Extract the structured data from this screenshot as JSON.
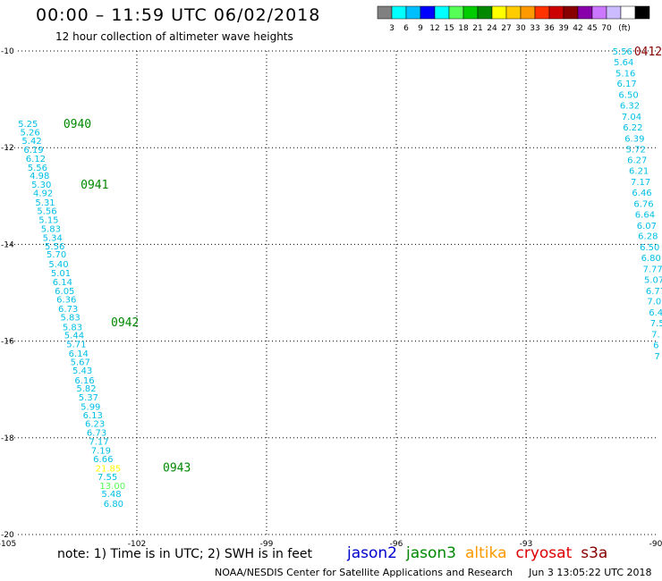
{
  "header": {
    "title": "00:00 – 11:59 UTC 06/02/2018",
    "subtitle": "12 hour collection of altimeter wave heights"
  },
  "colorbar": {
    "colors": [
      "#808080",
      "#00ffff",
      "#00bfff",
      "#0000ff",
      "#00ffff",
      "#55ff55",
      "#00cc00",
      "#008800",
      "#ffff00",
      "#ffcc00",
      "#ff9900",
      "#ff3300",
      "#cc0000",
      "#880000",
      "#8800aa",
      "#cc77ff",
      "#ccbbff",
      "#ffffff",
      "#000000"
    ],
    "labels": [
      "3",
      "6",
      "9",
      "12",
      "15",
      "18",
      "21",
      "24",
      "27",
      "30",
      "33",
      "36",
      "39",
      "42",
      "45",
      "70",
      "(ft)"
    ]
  },
  "note": "note: 1) Time is in UTC; 2) SWH is in feet",
  "legend": [
    {
      "name": "jason2",
      "color": "#0000cc"
    },
    {
      "name": "jason3",
      "color": "#008800"
    },
    {
      "name": "altika",
      "color": "#ff9900"
    },
    {
      "name": "cryosat",
      "color": "#dd0000"
    },
    {
      "name": "s3a",
      "color": "#880000"
    }
  ],
  "footer": {
    "source": "NOAA/NESDIS Center for Satellite Applications and Research",
    "timestamp": "Jun  3 13:05:22 UTC 2018"
  },
  "chart_data": {
    "type": "scatter",
    "xlim": [
      -105,
      -90
    ],
    "ylim": [
      -20,
      -10
    ],
    "xticks": [
      "-105",
      "-102",
      "-99",
      "-96",
      "-93",
      "-90"
    ],
    "yticks": [
      "-10",
      "-12",
      "-14",
      "-16",
      "-18",
      "-20"
    ],
    "grid": true,
    "tracks": [
      {
        "satellite": "jason3",
        "label_color": "#008800",
        "time_labels": [
          {
            "time": "0940",
            "x": -103.7,
            "y": -11.5
          },
          {
            "time": "0941",
            "x": -103.3,
            "y": -12.75
          },
          {
            "time": "0942",
            "x": -102.6,
            "y": -15.6
          },
          {
            "time": "0943",
            "x": -101.4,
            "y": -18.6
          }
        ],
        "points": [
          {
            "x": -104.75,
            "y": -11.5,
            "v": "5.25"
          },
          {
            "x": -104.7,
            "y": -11.67,
            "v": "5.26"
          },
          {
            "x": -104.66,
            "y": -11.85,
            "v": "5.42"
          },
          {
            "x": -104.62,
            "y": -12.03,
            "v": "6.19"
          },
          {
            "x": -104.57,
            "y": -12.22,
            "v": "6.12"
          },
          {
            "x": -104.53,
            "y": -12.4,
            "v": "5.56"
          },
          {
            "x": -104.48,
            "y": -12.57,
            "v": "4.98"
          },
          {
            "x": -104.44,
            "y": -12.75,
            "v": "5.30"
          },
          {
            "x": -104.4,
            "y": -12.93,
            "v": "4.92"
          },
          {
            "x": -104.35,
            "y": -13.12,
            "v": "5.31"
          },
          {
            "x": -104.31,
            "y": -13.3,
            "v": "5.56"
          },
          {
            "x": -104.27,
            "y": -13.48,
            "v": "5.15"
          },
          {
            "x": -104.22,
            "y": -13.67,
            "v": "5.83"
          },
          {
            "x": -104.18,
            "y": -13.85,
            "v": "5.34"
          },
          {
            "x": -104.13,
            "y": -14.03,
            "v": "5.56"
          },
          {
            "x": -104.09,
            "y": -14.2,
            "v": "5.70"
          },
          {
            "x": -104.04,
            "y": -14.4,
            "v": "5.40"
          },
          {
            "x": -103.99,
            "y": -14.58,
            "v": "5.01"
          },
          {
            "x": -103.95,
            "y": -14.77,
            "v": "6.14"
          },
          {
            "x": -103.9,
            "y": -14.95,
            "v": "6.05"
          },
          {
            "x": -103.86,
            "y": -15.13,
            "v": "6.36"
          },
          {
            "x": -103.82,
            "y": -15.32,
            "v": "6.73"
          },
          {
            "x": -103.77,
            "y": -15.5,
            "v": "5.83"
          },
          {
            "x": -103.72,
            "y": -15.7,
            "v": "5.83"
          },
          {
            "x": -103.68,
            "y": -15.87,
            "v": "5.44"
          },
          {
            "x": -103.63,
            "y": -16.05,
            "v": "5.71"
          },
          {
            "x": -103.58,
            "y": -16.25,
            "v": "6.14"
          },
          {
            "x": -103.54,
            "y": -16.42,
            "v": "5.67"
          },
          {
            "x": -103.49,
            "y": -16.6,
            "v": "5.43"
          },
          {
            "x": -103.44,
            "y": -16.8,
            "v": "6.16"
          },
          {
            "x": -103.4,
            "y": -16.97,
            "v": "5.82"
          },
          {
            "x": -103.35,
            "y": -17.15,
            "v": "5.37"
          },
          {
            "x": -103.3,
            "y": -17.35,
            "v": "5.99"
          },
          {
            "x": -103.25,
            "y": -17.52,
            "v": "6.13"
          },
          {
            "x": -103.2,
            "y": -17.7,
            "v": "6.23"
          },
          {
            "x": -103.16,
            "y": -17.88,
            "v": "6.73"
          },
          {
            "x": -103.11,
            "y": -18.07,
            "v": "7.17"
          },
          {
            "x": -103.06,
            "y": -18.25,
            "v": "7.19"
          },
          {
            "x": -103.01,
            "y": -18.43,
            "v": "6.66"
          },
          {
            "x": -102.96,
            "y": -18.62,
            "v": "21.85",
            "color": "#ffff00"
          },
          {
            "x": -102.91,
            "y": -18.8,
            "v": "7.55"
          },
          {
            "x": -102.86,
            "y": -18.98,
            "v": "13.00",
            "color": "#55ff55"
          },
          {
            "x": -102.82,
            "y": -19.15,
            "v": "5.48"
          },
          {
            "x": -102.77,
            "y": -19.35,
            "v": "6.80"
          }
        ]
      },
      {
        "satellite": "s3a",
        "label_color": "#880000",
        "time_labels": [
          {
            "time": "0412",
            "x": -90.5,
            "y": -10.0
          },
          {
            "time": "041",
            "x": -89.8,
            "y": -11.95
          }
        ],
        "points": [
          {
            "x": -91.0,
            "y": -10.0,
            "v": "5.56"
          },
          {
            "x": -90.97,
            "y": -10.22,
            "v": "5.64"
          },
          {
            "x": -90.93,
            "y": -10.45,
            "v": "5.16"
          },
          {
            "x": -90.9,
            "y": -10.67,
            "v": "6.17"
          },
          {
            "x": -90.86,
            "y": -10.9,
            "v": "6.50"
          },
          {
            "x": -90.83,
            "y": -11.12,
            "v": "6.32"
          },
          {
            "x": -90.79,
            "y": -11.35,
            "v": "7.04"
          },
          {
            "x": -90.76,
            "y": -11.57,
            "v": "6.22"
          },
          {
            "x": -90.72,
            "y": -11.8,
            "v": "6.39"
          },
          {
            "x": -90.69,
            "y": -12.02,
            "v": "5.72"
          },
          {
            "x": -90.66,
            "y": -12.25,
            "v": "6.27"
          },
          {
            "x": -90.62,
            "y": -12.47,
            "v": "6.21"
          },
          {
            "x": -90.58,
            "y": -12.7,
            "v": "7.17"
          },
          {
            "x": -90.55,
            "y": -12.92,
            "v": "6.46"
          },
          {
            "x": -90.51,
            "y": -13.15,
            "v": "6.76"
          },
          {
            "x": -90.48,
            "y": -13.37,
            "v": "6.64"
          },
          {
            "x": -90.44,
            "y": -13.6,
            "v": "6.07"
          },
          {
            "x": -90.41,
            "y": -13.82,
            "v": "6.28"
          },
          {
            "x": -90.37,
            "y": -14.05,
            "v": "6.50"
          },
          {
            "x": -90.34,
            "y": -14.27,
            "v": "6.80"
          },
          {
            "x": -90.3,
            "y": -14.5,
            "v": "7.77"
          },
          {
            "x": -90.27,
            "y": -14.72,
            "v": "5.07"
          },
          {
            "x": -90.23,
            "y": -14.95,
            "v": "6.77"
          },
          {
            "x": -90.2,
            "y": -15.17,
            "v": "7.0"
          },
          {
            "x": -90.16,
            "y": -15.4,
            "v": "6.4"
          },
          {
            "x": -90.13,
            "y": -15.62,
            "v": "7.5"
          },
          {
            "x": -90.1,
            "y": -15.85,
            "v": "7."
          },
          {
            "x": -90.06,
            "y": -16.07,
            "v": "6"
          },
          {
            "x": -90.03,
            "y": -16.3,
            "v": "7"
          }
        ]
      }
    ]
  }
}
